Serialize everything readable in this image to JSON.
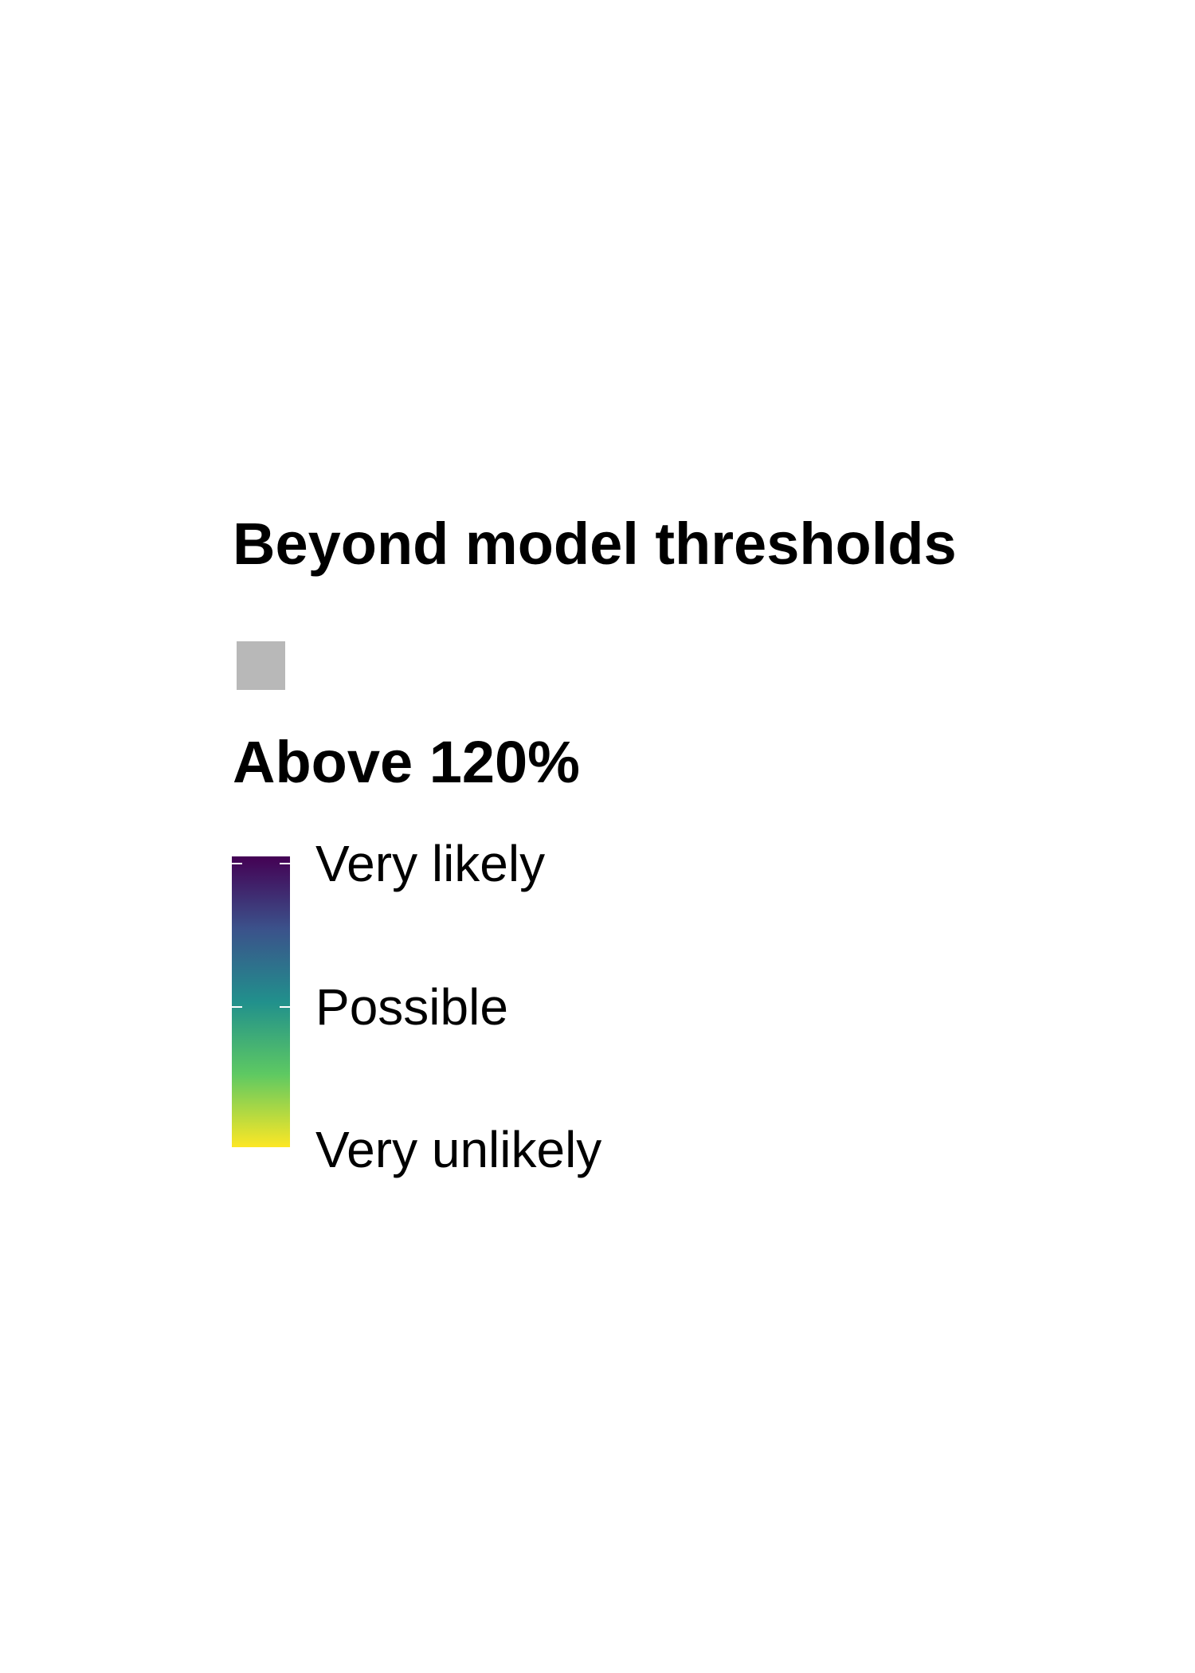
{
  "chart_data": {
    "type": "legend",
    "legends": [
      {
        "title": "Beyond model thresholds",
        "kind": "swatch",
        "swatch_color": "#b8b8b8",
        "label": ""
      },
      {
        "title": "Above 120%",
        "kind": "colorbar",
        "colormap": "viridis",
        "gradient_colors": [
          "#440154",
          "#3b528b",
          "#21908c",
          "#5ec962",
          "#fde725"
        ],
        "ticks": [
          {
            "label": "Very likely",
            "value": 1.0
          },
          {
            "label": "Possible",
            "value": 0.5
          },
          {
            "label": "Very unlikely",
            "value": 0.0
          }
        ]
      }
    ]
  }
}
